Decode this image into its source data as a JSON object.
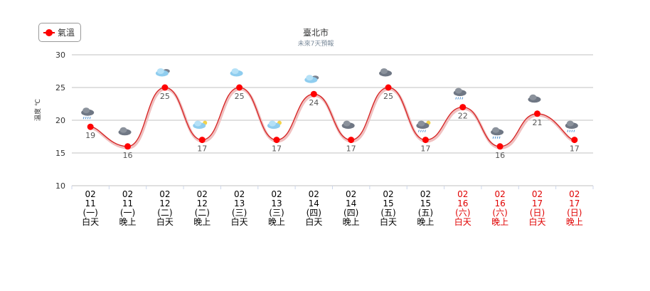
{
  "chart_data": {
    "type": "line",
    "title": "臺北市",
    "subtitle": "未來7天預報",
    "ylabel": "溫度 ℃",
    "ylim": [
      10,
      30
    ],
    "yticks": [
      10,
      15,
      20,
      25,
      30
    ],
    "grid": true,
    "legend": {
      "position": "top-left",
      "label": "氣溫"
    },
    "series": [
      {
        "name": "氣溫",
        "color": "#ff0000",
        "values": [
          19,
          16,
          25,
          17,
          25,
          17,
          24,
          17,
          25,
          17,
          22,
          16,
          21,
          17
        ]
      }
    ],
    "categories": [
      {
        "month": "02",
        "day": "11",
        "weekday": "(一)",
        "period": "白天",
        "weekend": false,
        "icon": "rain-cloud-icon"
      },
      {
        "month": "02",
        "day": "11",
        "weekday": "(一)",
        "period": "晚上",
        "weekend": false,
        "icon": "dark-cloud-icon"
      },
      {
        "month": "02",
        "day": "12",
        "weekday": "(二)",
        "period": "白天",
        "weekend": false,
        "icon": "cloudy-icon"
      },
      {
        "month": "02",
        "day": "12",
        "weekday": "(二)",
        "period": "晚上",
        "weekend": false,
        "icon": "partly-cloudy-night-icon"
      },
      {
        "month": "02",
        "day": "13",
        "weekday": "(三)",
        "period": "白天",
        "weekend": false,
        "icon": "light-cloud-icon"
      },
      {
        "month": "02",
        "day": "13",
        "weekday": "(三)",
        "period": "晚上",
        "weekend": false,
        "icon": "partly-cloudy-night-icon"
      },
      {
        "month": "02",
        "day": "14",
        "weekday": "(四)",
        "period": "白天",
        "weekend": false,
        "icon": "cloudy-icon"
      },
      {
        "month": "02",
        "day": "14",
        "weekday": "(四)",
        "period": "晚上",
        "weekend": false,
        "icon": "dark-cloud-icon"
      },
      {
        "month": "02",
        "day": "15",
        "weekday": "(五)",
        "period": "白天",
        "weekend": false,
        "icon": "dark-cloud-icon"
      },
      {
        "month": "02",
        "day": "15",
        "weekday": "(五)",
        "period": "晚上",
        "weekend": false,
        "icon": "rain-night-icon"
      },
      {
        "month": "02",
        "day": "16",
        "weekday": "(六)",
        "period": "白天",
        "weekend": true,
        "icon": "rain-cloud-icon"
      },
      {
        "month": "02",
        "day": "16",
        "weekday": "(六)",
        "period": "晚上",
        "weekend": true,
        "icon": "rain-cloud-icon"
      },
      {
        "month": "02",
        "day": "17",
        "weekday": "(日)",
        "period": "白天",
        "weekend": true,
        "icon": "dark-cloud-icon"
      },
      {
        "month": "02",
        "day": "17",
        "weekday": "(日)",
        "period": "晚上",
        "weekend": true,
        "icon": "rain-cloud-icon"
      }
    ],
    "colors": {
      "weekday_text": "#000000",
      "weekend_text": "#e00000",
      "line": "#d62020",
      "grid": "#c0c0c0"
    }
  }
}
